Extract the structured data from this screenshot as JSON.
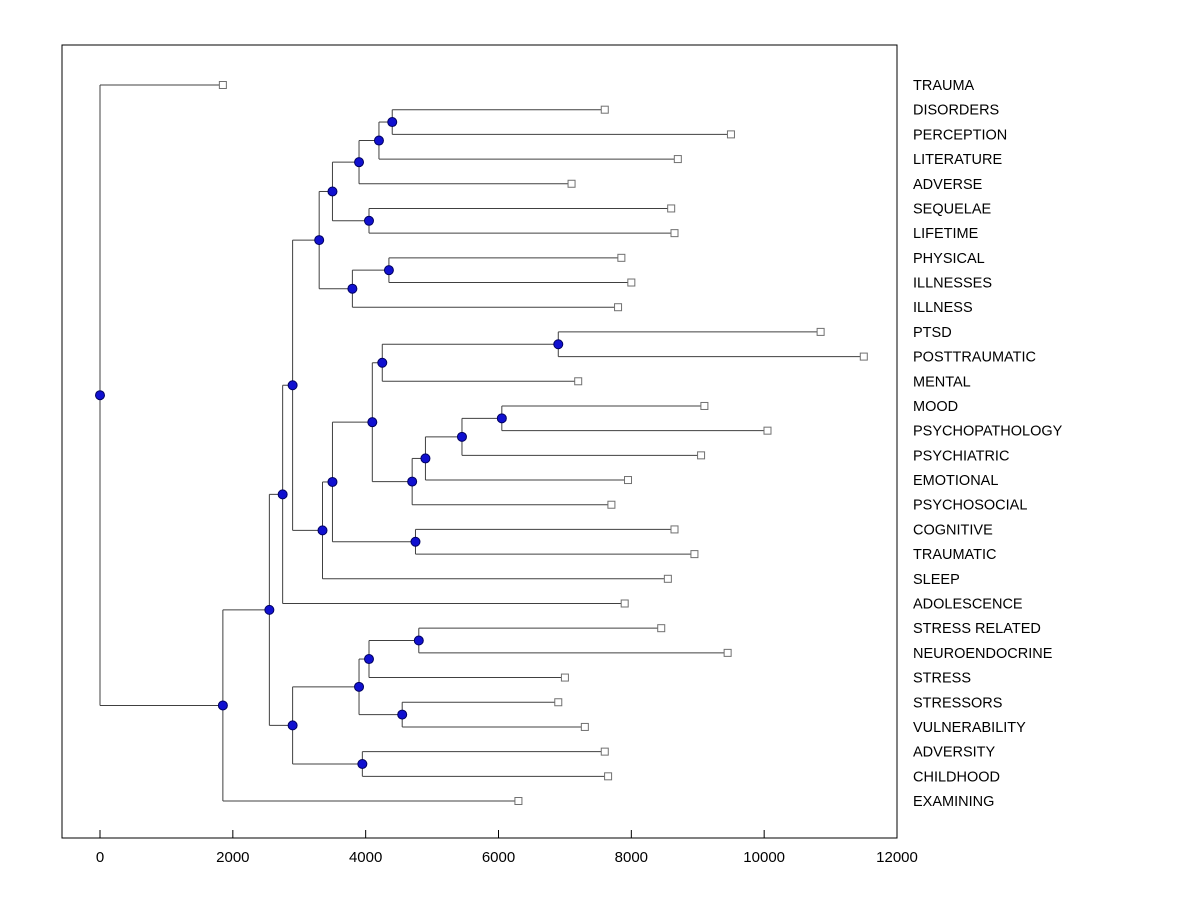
{
  "figure": {
    "background": "#ffffff"
  },
  "chart_data": {
    "type": "dendrogram",
    "orientation": "horizontal-root-left",
    "title": "",
    "xlabel": "",
    "ylabel": "",
    "grid": false,
    "legend": null,
    "x_ticks": [
      0,
      2000,
      4000,
      6000,
      8000,
      10000,
      12000
    ],
    "xlim": [
      -600,
      12000
    ],
    "leaf_label_side": "right",
    "colors": {
      "line": "#404040",
      "node_fill": "#1010d0",
      "node_edge": "#000060",
      "leaf_fill": "#ffffff",
      "leaf_edge": "#707070",
      "axis": "#000000",
      "background": "#ffffff"
    },
    "leaves": [
      {
        "label": "TRAUMA",
        "x": 1850
      },
      {
        "label": "DISORDERS",
        "x": 7600
      },
      {
        "label": "PERCEPTION",
        "x": 9500
      },
      {
        "label": "LITERATURE",
        "x": 8700
      },
      {
        "label": "ADVERSE",
        "x": 7100
      },
      {
        "label": "SEQUELAE",
        "x": 8600
      },
      {
        "label": "LIFETIME",
        "x": 8650
      },
      {
        "label": "PHYSICAL",
        "x": 7850
      },
      {
        "label": "ILLNESSES",
        "x": 8000
      },
      {
        "label": "ILLNESS",
        "x": 7800
      },
      {
        "label": "PTSD",
        "x": 10850
      },
      {
        "label": "POSTTRAUMATIC",
        "x": 11500
      },
      {
        "label": "MENTAL",
        "x": 7200
      },
      {
        "label": "MOOD",
        "x": 9100
      },
      {
        "label": "PSYCHOPATHOLOGY",
        "x": 10050
      },
      {
        "label": "PSYCHIATRIC",
        "x": 9050
      },
      {
        "label": "EMOTIONAL",
        "x": 7950
      },
      {
        "label": "PSYCHOSOCIAL",
        "x": 7700
      },
      {
        "label": "COGNITIVE",
        "x": 8650
      },
      {
        "label": "TRAUMATIC",
        "x": 8950
      },
      {
        "label": "SLEEP",
        "x": 8550
      },
      {
        "label": "ADOLESCENCE",
        "x": 7900
      },
      {
        "label": "STRESS RELATED",
        "x": 8450
      },
      {
        "label": "NEUROENDOCRINE",
        "x": 9450
      },
      {
        "label": "STRESS",
        "x": 7000
      },
      {
        "label": "STRESSORS",
        "x": 6900
      },
      {
        "label": "VULNERABILITY",
        "x": 7300
      },
      {
        "label": "ADVERSITY",
        "x": 7600
      },
      {
        "label": "CHILDHOOD",
        "x": 7650
      },
      {
        "label": "EXAMINING",
        "x": 6300
      }
    ],
    "nodes": [
      {
        "id": "n1",
        "x": 4400,
        "children": [
          "DISORDERS",
          "PERCEPTION"
        ]
      },
      {
        "id": "n2",
        "x": 4200,
        "children": [
          "n1",
          "LITERATURE"
        ]
      },
      {
        "id": "n3",
        "x": 3900,
        "children": [
          "n2",
          "ADVERSE"
        ]
      },
      {
        "id": "n5",
        "x": 4050,
        "children": [
          "SEQUELAE",
          "LIFETIME"
        ]
      },
      {
        "id": "n4",
        "x": 3500,
        "children": [
          "n3",
          "n5"
        ]
      },
      {
        "id": "n6",
        "x": 4350,
        "children": [
          "PHYSICAL",
          "ILLNESSES"
        ]
      },
      {
        "id": "n7",
        "x": 3800,
        "children": [
          "n6",
          "ILLNESS"
        ]
      },
      {
        "id": "n8",
        "x": 3300,
        "children": [
          "n4",
          "n7"
        ]
      },
      {
        "id": "n9",
        "x": 6900,
        "children": [
          "PTSD",
          "POSTTRAUMATIC"
        ]
      },
      {
        "id": "n10",
        "x": 4250,
        "children": [
          "n9",
          "MENTAL"
        ]
      },
      {
        "id": "n11",
        "x": 6050,
        "children": [
          "MOOD",
          "PSYCHOPATHOLOGY"
        ]
      },
      {
        "id": "n12",
        "x": 5450,
        "children": [
          "n11",
          "PSYCHIATRIC"
        ]
      },
      {
        "id": "n13",
        "x": 4900,
        "children": [
          "n12",
          "EMOTIONAL"
        ]
      },
      {
        "id": "n14",
        "x": 4700,
        "children": [
          "n13",
          "PSYCHOSOCIAL"
        ]
      },
      {
        "id": "n15",
        "x": 4100,
        "children": [
          "n10",
          "n14"
        ]
      },
      {
        "id": "n16",
        "x": 4750,
        "children": [
          "COGNITIVE",
          "TRAUMATIC"
        ]
      },
      {
        "id": "n17",
        "x": 3500,
        "children": [
          "n15",
          "n16"
        ]
      },
      {
        "id": "n18",
        "x": 3350,
        "children": [
          "n17",
          "SLEEP"
        ]
      },
      {
        "id": "n19",
        "x": 2900,
        "children": [
          "n8",
          "n18"
        ]
      },
      {
        "id": "n20",
        "x": 2750,
        "children": [
          "n19",
          "ADOLESCENCE"
        ]
      },
      {
        "id": "n21",
        "x": 4800,
        "children": [
          "STRESS RELATED",
          "NEUROENDOCRINE"
        ]
      },
      {
        "id": "n22",
        "x": 4050,
        "children": [
          "n21",
          "STRESS"
        ]
      },
      {
        "id": "n23",
        "x": 4550,
        "children": [
          "STRESSORS",
          "VULNERABILITY"
        ]
      },
      {
        "id": "n24",
        "x": 3900,
        "children": [
          "n22",
          "n23"
        ]
      },
      {
        "id": "n25",
        "x": 3950,
        "children": [
          "ADVERSITY",
          "CHILDHOOD"
        ]
      },
      {
        "id": "n26",
        "x": 2900,
        "children": [
          "n24",
          "n25"
        ]
      },
      {
        "id": "n27",
        "x": 2550,
        "children": [
          "n20",
          "n26"
        ]
      },
      {
        "id": "n28",
        "x": 1850,
        "children": [
          "n27",
          "EXAMINING"
        ]
      },
      {
        "id": "root",
        "x": 0,
        "children": [
          "TRAUMA",
          "n28"
        ]
      }
    ]
  }
}
